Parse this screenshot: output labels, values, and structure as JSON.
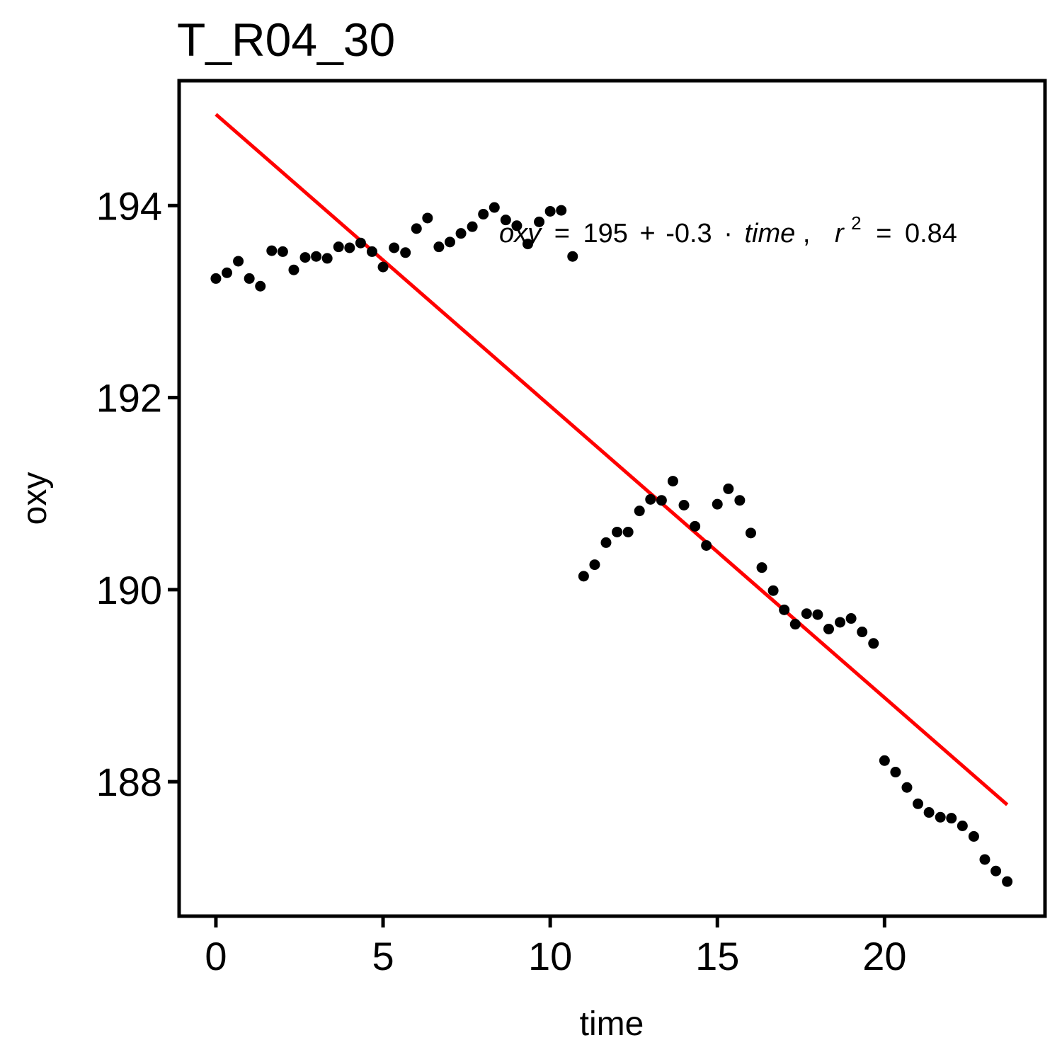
{
  "chart_data": {
    "type": "scatter",
    "title": "T_R04_30",
    "xlabel": "time",
    "ylabel": "oxy",
    "xlim": [
      -1.1,
      24.8
    ],
    "ylim": [
      186.6,
      195.3
    ],
    "x_ticks": [
      0,
      5,
      10,
      15,
      20
    ],
    "x_tick_labels": [
      "0",
      "5",
      "10",
      "15",
      "20"
    ],
    "y_ticks": [
      188,
      190,
      192,
      194
    ],
    "y_tick_labels": [
      "188",
      "190",
      "192",
      "194"
    ],
    "grid": false,
    "legend": "none",
    "points": [
      {
        "x": 0.0,
        "y": 193.24
      },
      {
        "x": 0.33,
        "y": 193.3
      },
      {
        "x": 0.67,
        "y": 193.42
      },
      {
        "x": 1.0,
        "y": 193.24
      },
      {
        "x": 1.33,
        "y": 193.16
      },
      {
        "x": 1.67,
        "y": 193.53
      },
      {
        "x": 2.0,
        "y": 193.52
      },
      {
        "x": 2.33,
        "y": 193.33
      },
      {
        "x": 2.67,
        "y": 193.46
      },
      {
        "x": 3.0,
        "y": 193.47
      },
      {
        "x": 3.33,
        "y": 193.45
      },
      {
        "x": 3.67,
        "y": 193.57
      },
      {
        "x": 4.0,
        "y": 193.56
      },
      {
        "x": 4.33,
        "y": 193.61
      },
      {
        "x": 4.67,
        "y": 193.52
      },
      {
        "x": 5.0,
        "y": 193.36
      },
      {
        "x": 5.33,
        "y": 193.56
      },
      {
        "x": 5.67,
        "y": 193.51
      },
      {
        "x": 6.0,
        "y": 193.76
      },
      {
        "x": 6.33,
        "y": 193.87
      },
      {
        "x": 6.67,
        "y": 193.57
      },
      {
        "x": 7.0,
        "y": 193.62
      },
      {
        "x": 7.33,
        "y": 193.71
      },
      {
        "x": 7.67,
        "y": 193.78
      },
      {
        "x": 8.0,
        "y": 193.91
      },
      {
        "x": 8.33,
        "y": 193.98
      },
      {
        "x": 8.67,
        "y": 193.85
      },
      {
        "x": 9.0,
        "y": 193.79
      },
      {
        "x": 9.33,
        "y": 193.6
      },
      {
        "x": 9.67,
        "y": 193.83
      },
      {
        "x": 10.0,
        "y": 193.94
      },
      {
        "x": 10.33,
        "y": 193.95
      },
      {
        "x": 10.67,
        "y": 193.47
      },
      {
        "x": 11.0,
        "y": 190.14
      },
      {
        "x": 11.33,
        "y": 190.26
      },
      {
        "x": 11.67,
        "y": 190.49
      },
      {
        "x": 12.0,
        "y": 190.6
      },
      {
        "x": 12.33,
        "y": 190.6
      },
      {
        "x": 12.67,
        "y": 190.82
      },
      {
        "x": 13.0,
        "y": 190.94
      },
      {
        "x": 13.33,
        "y": 190.93
      },
      {
        "x": 13.67,
        "y": 191.13
      },
      {
        "x": 14.0,
        "y": 190.88
      },
      {
        "x": 14.33,
        "y": 190.66
      },
      {
        "x": 14.67,
        "y": 190.46
      },
      {
        "x": 15.0,
        "y": 190.89
      },
      {
        "x": 15.33,
        "y": 191.05
      },
      {
        "x": 15.67,
        "y": 190.93
      },
      {
        "x": 16.0,
        "y": 190.59
      },
      {
        "x": 16.33,
        "y": 190.23
      },
      {
        "x": 16.67,
        "y": 189.99
      },
      {
        "x": 17.0,
        "y": 189.79
      },
      {
        "x": 17.33,
        "y": 189.64
      },
      {
        "x": 17.67,
        "y": 189.75
      },
      {
        "x": 18.0,
        "y": 189.74
      },
      {
        "x": 18.33,
        "y": 189.59
      },
      {
        "x": 18.67,
        "y": 189.66
      },
      {
        "x": 19.0,
        "y": 189.7
      },
      {
        "x": 19.33,
        "y": 189.56
      },
      {
        "x": 19.67,
        "y": 189.44
      },
      {
        "x": 20.0,
        "y": 188.22
      },
      {
        "x": 20.33,
        "y": 188.1
      },
      {
        "x": 20.67,
        "y": 187.94
      },
      {
        "x": 21.0,
        "y": 187.77
      },
      {
        "x": 21.33,
        "y": 187.68
      },
      {
        "x": 21.67,
        "y": 187.63
      },
      {
        "x": 22.0,
        "y": 187.62
      },
      {
        "x": 22.33,
        "y": 187.54
      },
      {
        "x": 22.67,
        "y": 187.43
      },
      {
        "x": 23.0,
        "y": 187.19
      },
      {
        "x": 23.33,
        "y": 187.07
      },
      {
        "x": 23.67,
        "y": 186.96
      }
    ],
    "fit_line": {
      "x": [
        0,
        23.67
      ],
      "y": [
        194.95,
        187.76
      ],
      "color": "#ff0000"
    },
    "annotation": {
      "lhs": "oxy",
      "eq": "=",
      "intercept": "195",
      "plus": "+",
      "slope": "-0.3",
      "dot": "·",
      "var": "time",
      "comma": ",",
      "r": "r",
      "r_sup": "2",
      "r2_eq": "=",
      "r2_value": "0.84"
    },
    "colors": {
      "points": "#000000",
      "line": "#ff0000",
      "frame": "#000000"
    }
  }
}
